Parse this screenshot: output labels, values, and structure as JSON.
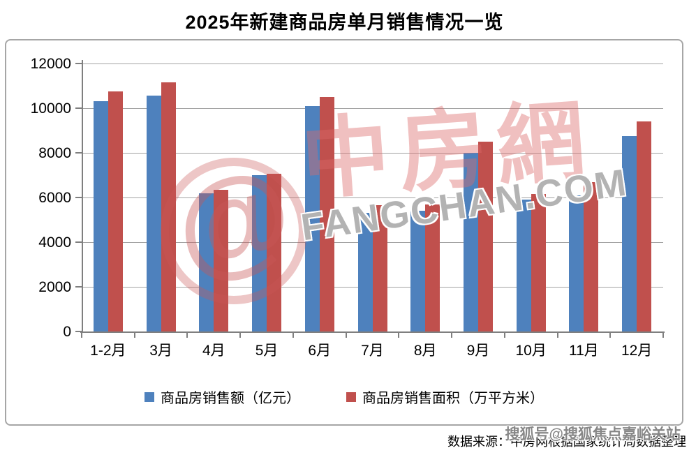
{
  "chart_data": {
    "type": "bar",
    "title": "2025年新建商品房单月销售情况一览",
    "categories": [
      "1-2月",
      "3月",
      "4月",
      "5月",
      "6月",
      "7月",
      "8月",
      "9月",
      "10月",
      "11月",
      "12月"
    ],
    "series": [
      {
        "key": "sales-amount",
        "name": "商品房销售额（亿元）",
        "color": "#4E81BD",
        "values": [
          10300,
          10550,
          6200,
          7000,
          10100,
          5300,
          5400,
          8000,
          5900,
          6100,
          8750
        ]
      },
      {
        "key": "sales-area",
        "name": "商品房销售面积（万平方米）",
        "color": "#C0504D",
        "values": [
          10750,
          11150,
          6350,
          7050,
          10500,
          5650,
          5700,
          8500,
          6150,
          6700,
          9400
        ]
      }
    ],
    "xlabel": "",
    "ylabel": "",
    "ylim": [
      0,
      12000
    ],
    "ytick_interval": 2000,
    "yticks": [
      0,
      2000,
      4000,
      6000,
      8000,
      10000,
      12000
    ],
    "grid": true,
    "legend_position": "bottom-inside"
  },
  "watermark": {
    "at_symbol": "@",
    "brand_cn": "中房網",
    "brand_domain": "FANGCHAN.COM",
    "sohu_badge": "搜狐号@搜狐焦点嘉峪关站"
  },
  "footer": {
    "source": "数据来源：中房网根据国家统计局数据整理"
  },
  "colors": {
    "gridline": "#A3A3A3",
    "axis": "#7F7F7F",
    "chart_border": "#A6A6A6",
    "watermark_red": "#C95858",
    "watermark_gray": "#969696"
  }
}
